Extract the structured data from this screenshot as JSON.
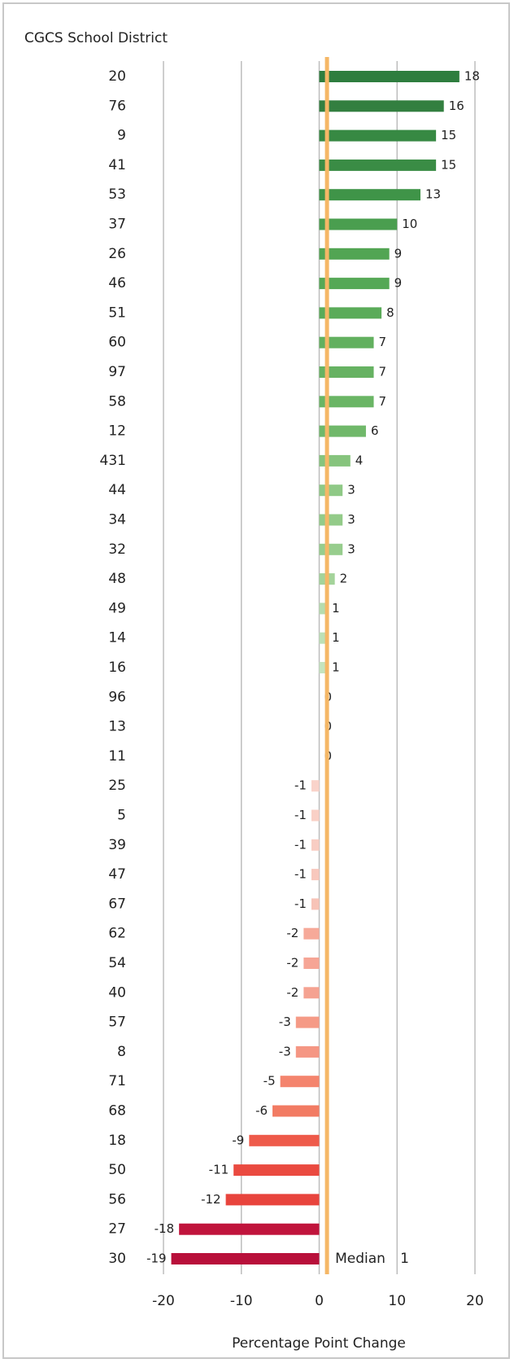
{
  "chart_data": {
    "type": "bar",
    "orientation": "horizontal",
    "title": "CGCS School District",
    "x_label": "Percentage Point Change",
    "categories": [
      "20",
      "76",
      "9",
      "41",
      "53",
      "37",
      "26",
      "46",
      "51",
      "60",
      "97",
      "58",
      "12",
      "431",
      "44",
      "34",
      "32",
      "48",
      "49",
      "14",
      "16",
      "96",
      "13",
      "11",
      "25",
      "5",
      "39",
      "47",
      "67",
      "62",
      "54",
      "40",
      "57",
      "8",
      "71",
      "68",
      "18",
      "50",
      "56",
      "27",
      "30"
    ],
    "values": [
      18,
      16,
      15,
      15,
      13,
      10,
      9,
      9,
      8,
      7,
      7,
      7,
      6,
      4,
      3,
      3,
      3,
      2,
      1,
      1,
      1,
      0,
      0,
      0,
      -1,
      -1,
      -1,
      -1,
      -1,
      -2,
      -2,
      -2,
      -3,
      -3,
      -5,
      -6,
      -9,
      -11,
      -12,
      -18,
      -19
    ],
    "colors": [
      "#2e7d3e",
      "#337f40",
      "#378943",
      "#3a8c45",
      "#3f9448",
      "#4a9e4f",
      "#52a553",
      "#55a856",
      "#5aab59",
      "#62b05f",
      "#66b262",
      "#6ab565",
      "#70b86a",
      "#86c47d",
      "#8fc986",
      "#93cb89",
      "#97cd8d",
      "#a4d39a",
      "#b6dcae",
      "#bde0b6",
      "#c5e4be",
      "#d7ecd2",
      "#dff0db",
      "#fbe0da",
      "#f9d3ca",
      "#f9d0c6",
      "#f8cdc3",
      "#f8c8bd",
      "#f7c3b7",
      "#f6a999",
      "#f6a595",
      "#f5a291",
      "#f59a86",
      "#f59683",
      "#f4846d",
      "#f27b63",
      "#ee5a4a",
      "#ea4a40",
      "#e8443d",
      "#c0143c",
      "#b80f3a"
    ],
    "xlim": [
      -20,
      20
    ],
    "xticks": [
      -20,
      -10,
      0,
      10,
      20
    ],
    "grid": true,
    "median_label": "Median",
    "median": 1,
    "median_color": "#f5b766"
  }
}
